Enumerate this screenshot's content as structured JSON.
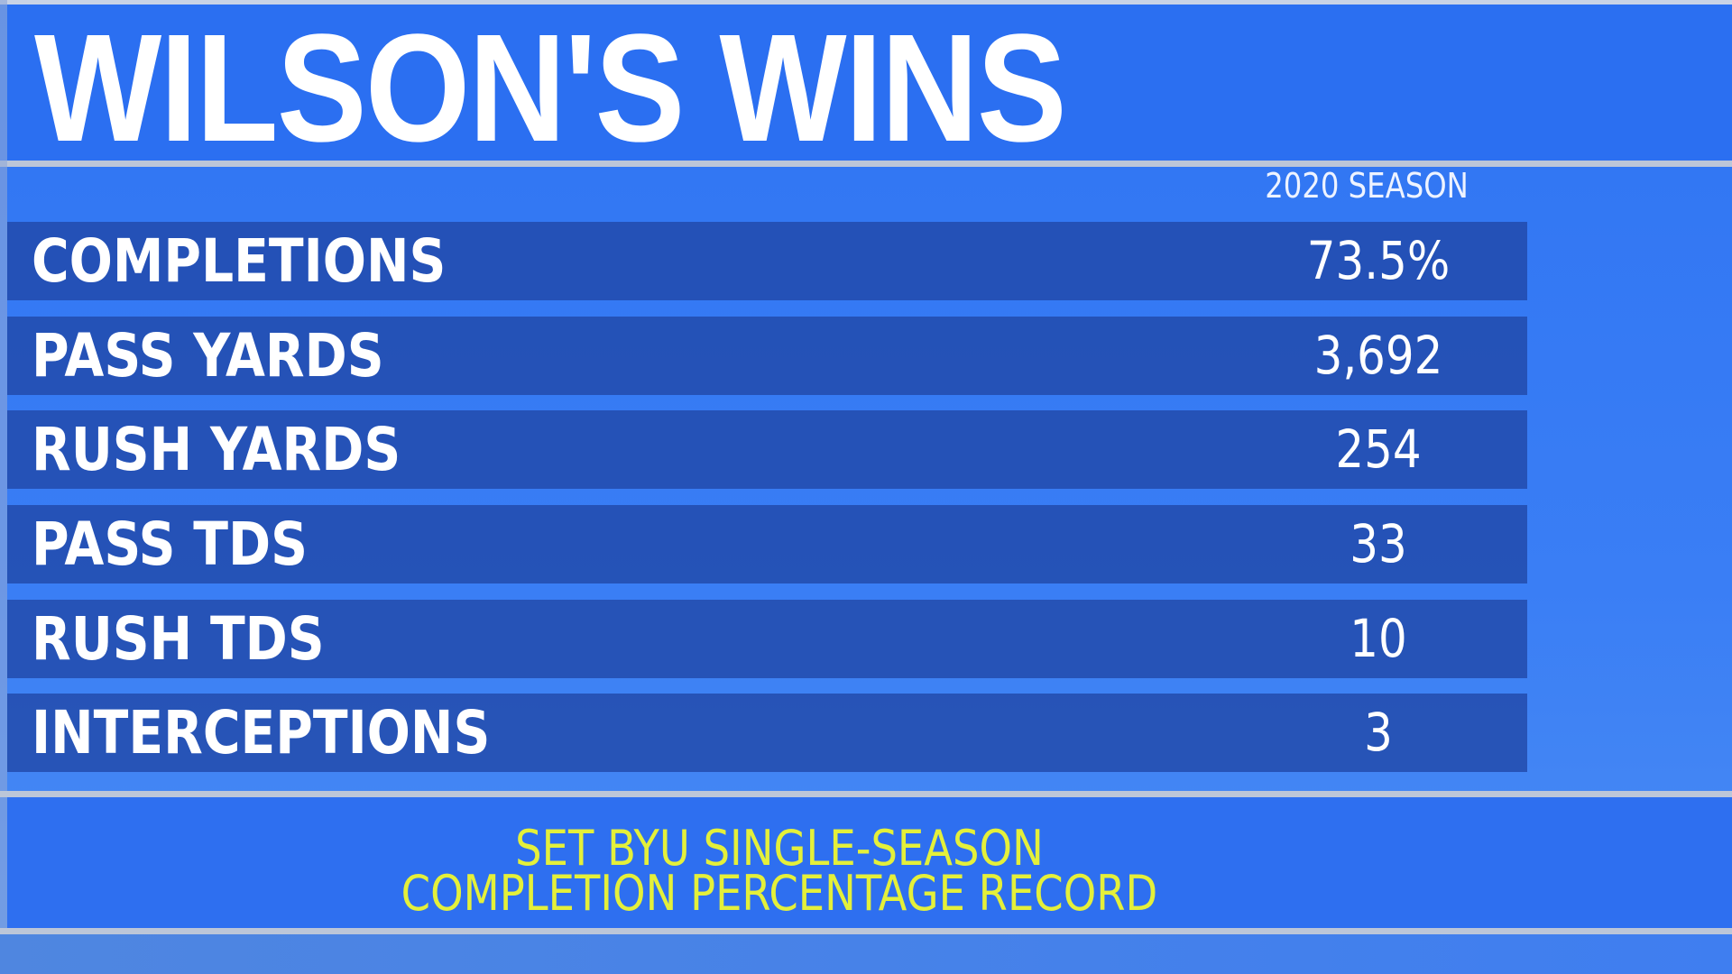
{
  "header": {
    "title": "WILSON'S WINS"
  },
  "table": {
    "column_header": "2020 SEASON",
    "rows": [
      {
        "label": "COMPLETIONS",
        "value": "73.5%"
      },
      {
        "label": "PASS YARDS",
        "value": "3,692"
      },
      {
        "label": "RUSH YARDS",
        "value": "254"
      },
      {
        "label": "PASS TDS",
        "value": "33"
      },
      {
        "label": "RUSH TDS",
        "value": "10"
      },
      {
        "label": "INTERCEPTIONS",
        "value": "3"
      }
    ]
  },
  "footer": {
    "line1": "SET BYU SINGLE-SEASON",
    "line2": "COMPLETION PERCENTAGE RECORD"
  },
  "colors": {
    "background": "#2f74f2",
    "row": "#2046a5",
    "note": "#e4f03a",
    "divider": "#bcc6d8"
  }
}
